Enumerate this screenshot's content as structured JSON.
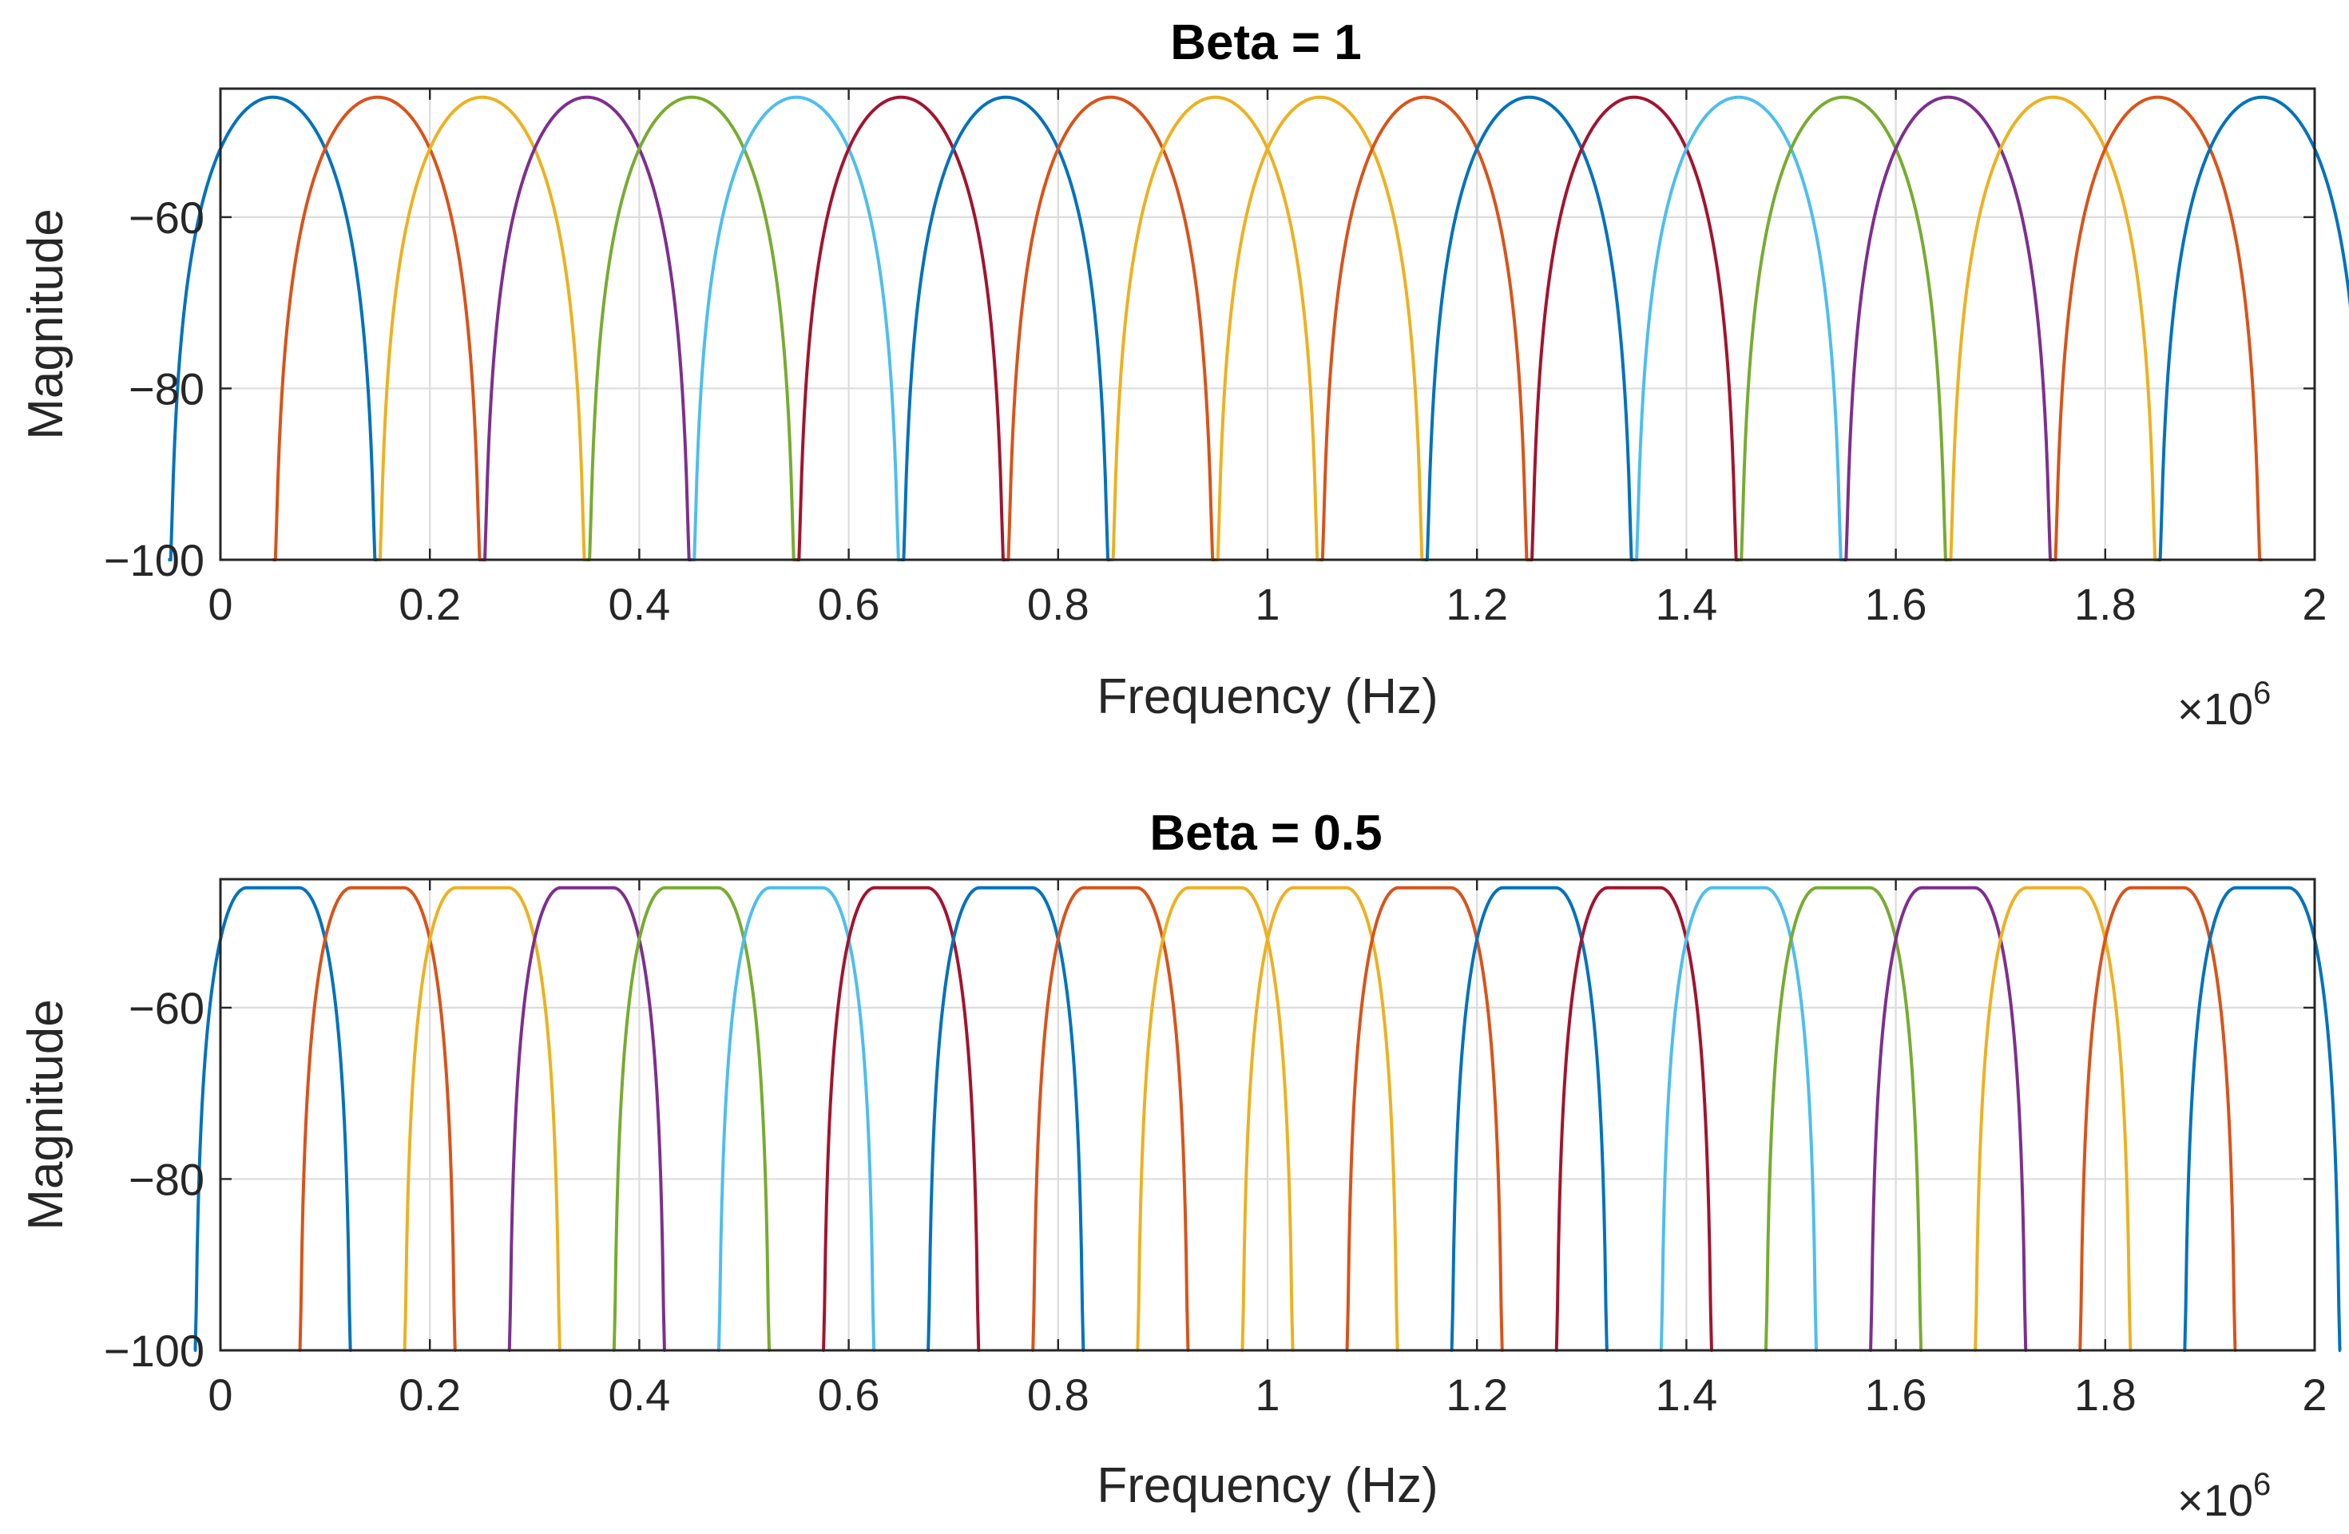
{
  "chart_data": [
    {
      "type": "line",
      "title": "Beta = 1",
      "xlabel": "Frequency (Hz)",
      "ylabel": "Magnitude",
      "x_multiplier": "×10",
      "x_exponent": "6",
      "xlim": [
        0,
        2
      ],
      "ylim": [
        -100,
        -45
      ],
      "xticks": [
        0,
        0.2,
        0.4,
        0.6,
        0.8,
        1,
        1.2,
        1.4,
        1.6,
        1.8,
        2
      ],
      "xtick_labels": [
        "0",
        "0.2",
        "0.4",
        "0.6",
        "0.8",
        "1",
        "1.2",
        "1.4",
        "1.6",
        "1.8",
        "2"
      ],
      "yticks": [
        -100,
        -80,
        -60
      ],
      "ytick_labels": [
        "−100",
        "−80",
        "−60"
      ],
      "grid": true,
      "beta": 1,
      "peak": -46,
      "floor": -100,
      "channel_width": 0.1,
      "series": [
        {
          "center": 0.05,
          "color": "#0072BD"
        },
        {
          "center": 0.15,
          "color": "#D95319"
        },
        {
          "center": 0.25,
          "color": "#EDB120"
        },
        {
          "center": 0.35,
          "color": "#7E2F8E"
        },
        {
          "center": 0.45,
          "color": "#77AC30"
        },
        {
          "center": 0.55,
          "color": "#4DBEEE"
        },
        {
          "center": 0.65,
          "color": "#A2142F"
        },
        {
          "center": 0.75,
          "color": "#0072BD"
        },
        {
          "center": 0.85,
          "color": "#D95319"
        },
        {
          "center": 0.95,
          "color": "#EDB120"
        },
        {
          "center": 1.05,
          "color": "#EDB120"
        },
        {
          "center": 1.15,
          "color": "#D95319"
        },
        {
          "center": 1.25,
          "color": "#0072BD"
        },
        {
          "center": 1.35,
          "color": "#A2142F"
        },
        {
          "center": 1.45,
          "color": "#4DBEEE"
        },
        {
          "center": 1.55,
          "color": "#77AC30"
        },
        {
          "center": 1.65,
          "color": "#7E2F8E"
        },
        {
          "center": 1.75,
          "color": "#EDB120"
        },
        {
          "center": 1.85,
          "color": "#D95319"
        },
        {
          "center": 1.95,
          "color": "#0072BD"
        }
      ]
    },
    {
      "type": "line",
      "title": "Beta = 0.5",
      "xlabel": "Frequency (Hz)",
      "ylabel": "Magnitude",
      "x_multiplier": "×10",
      "x_exponent": "6",
      "xlim": [
        0,
        2
      ],
      "ylim": [
        -100,
        -45
      ],
      "xticks": [
        0,
        0.2,
        0.4,
        0.6,
        0.8,
        1,
        1.2,
        1.4,
        1.6,
        1.8,
        2
      ],
      "xtick_labels": [
        "0",
        "0.2",
        "0.4",
        "0.6",
        "0.8",
        "1",
        "1.2",
        "1.4",
        "1.6",
        "1.8",
        "2"
      ],
      "yticks": [
        -100,
        -80,
        -60
      ],
      "ytick_labels": [
        "−100",
        "−80",
        "−60"
      ],
      "grid": true,
      "beta": 0.5,
      "peak": -46,
      "floor": -100,
      "channel_width": 0.1,
      "series": [
        {
          "center": 0.05,
          "color": "#0072BD"
        },
        {
          "center": 0.15,
          "color": "#D95319"
        },
        {
          "center": 0.25,
          "color": "#EDB120"
        },
        {
          "center": 0.35,
          "color": "#7E2F8E"
        },
        {
          "center": 0.45,
          "color": "#77AC30"
        },
        {
          "center": 0.55,
          "color": "#4DBEEE"
        },
        {
          "center": 0.65,
          "color": "#A2142F"
        },
        {
          "center": 0.75,
          "color": "#0072BD"
        },
        {
          "center": 0.85,
          "color": "#D95319"
        },
        {
          "center": 0.95,
          "color": "#EDB120"
        },
        {
          "center": 1.05,
          "color": "#EDB120"
        },
        {
          "center": 1.15,
          "color": "#D95319"
        },
        {
          "center": 1.25,
          "color": "#0072BD"
        },
        {
          "center": 1.35,
          "color": "#A2142F"
        },
        {
          "center": 1.45,
          "color": "#4DBEEE"
        },
        {
          "center": 1.55,
          "color": "#77AC30"
        },
        {
          "center": 1.65,
          "color": "#7E2F8E"
        },
        {
          "center": 1.75,
          "color": "#EDB120"
        },
        {
          "center": 1.85,
          "color": "#D95319"
        },
        {
          "center": 1.95,
          "color": "#0072BD"
        }
      ]
    }
  ]
}
